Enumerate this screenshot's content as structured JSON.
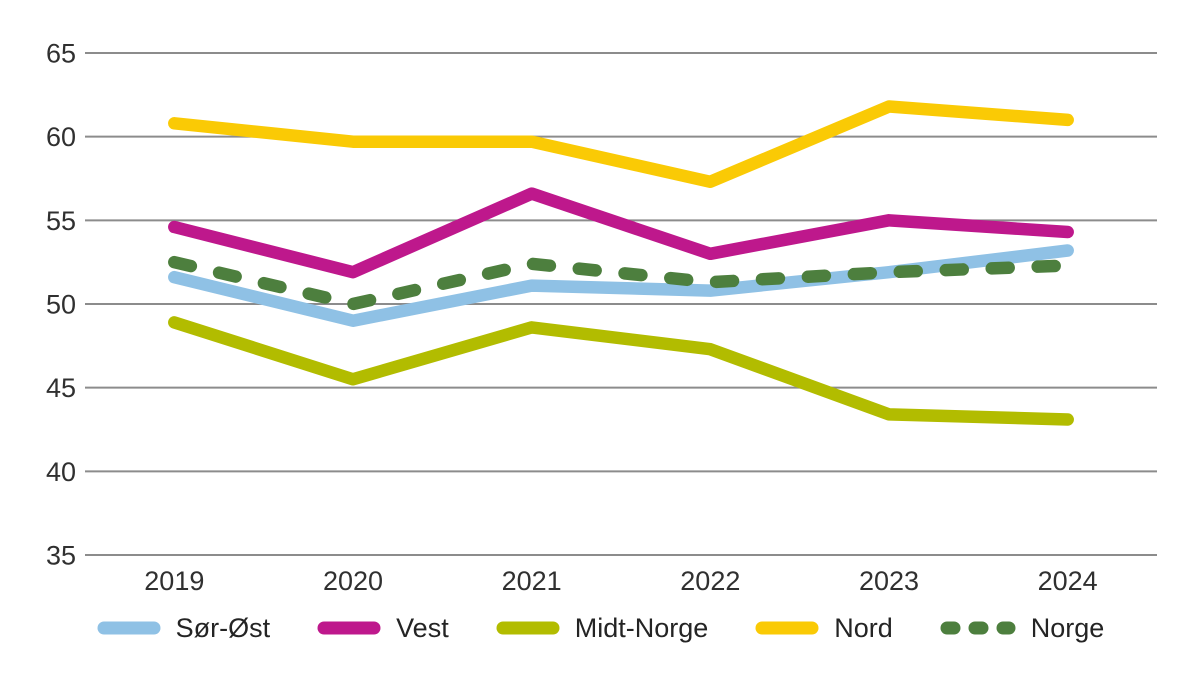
{
  "chart_data": {
    "type": "line",
    "title": "",
    "xlabel": "",
    "ylabel": "",
    "categories": [
      "2019",
      "2020",
      "2021",
      "2022",
      "2023",
      "2024"
    ],
    "series": [
      {
        "name": "Sør-Øst",
        "color": "#8FC1E5",
        "dashed": false,
        "values": [
          51.6,
          49.0,
          51.1,
          50.8,
          51.9,
          53.2
        ]
      },
      {
        "name": "Vest",
        "color": "#BE188C",
        "dashed": false,
        "values": [
          54.6,
          51.9,
          56.6,
          53.0,
          55.0,
          54.3
        ]
      },
      {
        "name": "Midt-Norge",
        "color": "#B2BC00",
        "dashed": false,
        "values": [
          48.9,
          45.5,
          48.6,
          47.3,
          43.4,
          43.1
        ]
      },
      {
        "name": "Nord",
        "color": "#FACA05",
        "dashed": false,
        "values": [
          60.8,
          59.7,
          59.7,
          57.3,
          61.8,
          61.0
        ]
      },
      {
        "name": "Norge",
        "color": "#4D7F3E",
        "dashed": true,
        "values": [
          52.5,
          50.0,
          52.4,
          51.3,
          51.9,
          52.3
        ]
      }
    ],
    "ylim": [
      35,
      65
    ],
    "yticks": [
      35,
      40,
      45,
      50,
      55,
      60,
      65
    ],
    "grid": true,
    "legend_position": "bottom",
    "colors": {
      "gridline": "#8C8C8C",
      "tick_label": "#303030",
      "background": "#FFFFFF"
    }
  }
}
